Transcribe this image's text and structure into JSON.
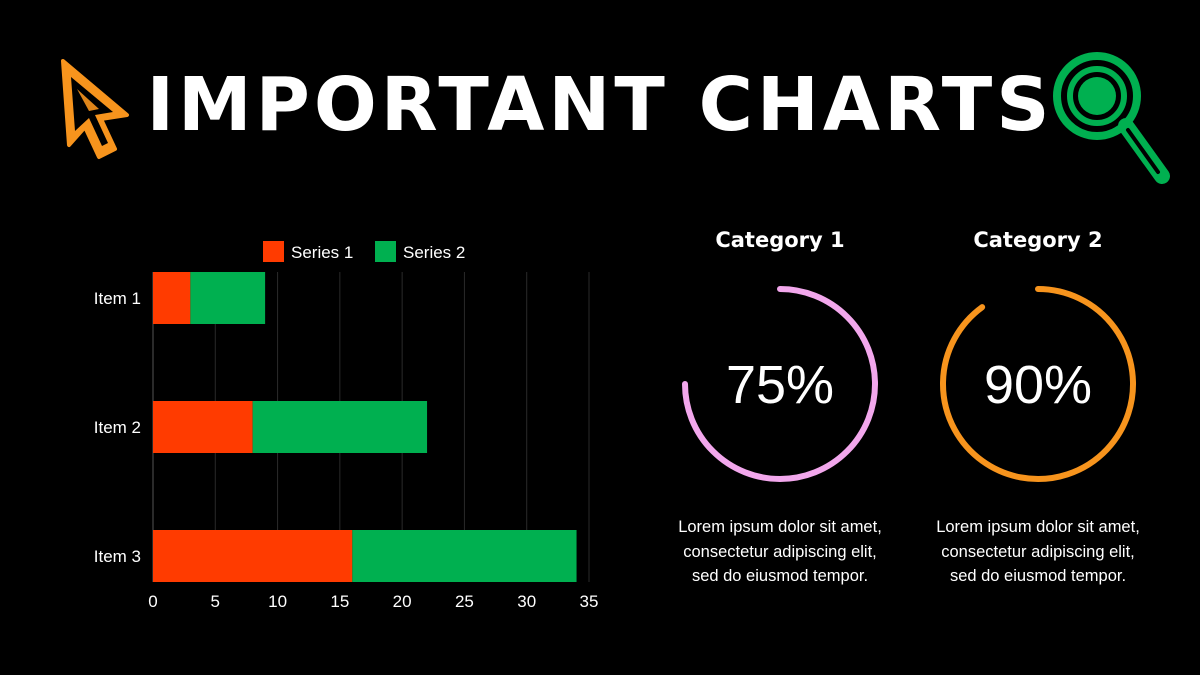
{
  "title": "IMPORTANT CHARTS",
  "icons": {
    "left": "cursor-arrow-icon",
    "right": "magnifying-glass-icon"
  },
  "colors": {
    "background": "#000000",
    "series1": "#ff3b00",
    "series2": "#00b050",
    "category1_ring": "#f2a7ec",
    "category2_ring": "#f7941d",
    "cursor_icon": "#f7941d",
    "search_icon": "#00b050"
  },
  "chart_data": [
    {
      "type": "bar",
      "orientation": "horizontal",
      "stacked": true,
      "categories": [
        "Item 1",
        "Item 2",
        "Item 3"
      ],
      "series": [
        {
          "name": "Series 1",
          "values": [
            3,
            8,
            16
          ]
        },
        {
          "name": "Series 2",
          "values": [
            6,
            14,
            18
          ]
        }
      ],
      "xlim": [
        0,
        35
      ],
      "xticks": [
        "0",
        "5",
        "10",
        "15",
        "20",
        "25",
        "30",
        "35"
      ],
      "grid": true,
      "legend": "top"
    },
    {
      "type": "pie",
      "subtype": "progress-ring",
      "label": "Category 1",
      "value": 75,
      "display": "75%",
      "description": "Lorem ipsum dolor sit amet, consectetur adipiscing elit, sed do eiusmod tempor."
    },
    {
      "type": "pie",
      "subtype": "progress-ring",
      "label": "Category 2",
      "value": 90,
      "display": "90%",
      "description": "Lorem ipsum dolor sit amet, consectetur adipiscing elit, sed do eiusmod tempor."
    }
  ]
}
